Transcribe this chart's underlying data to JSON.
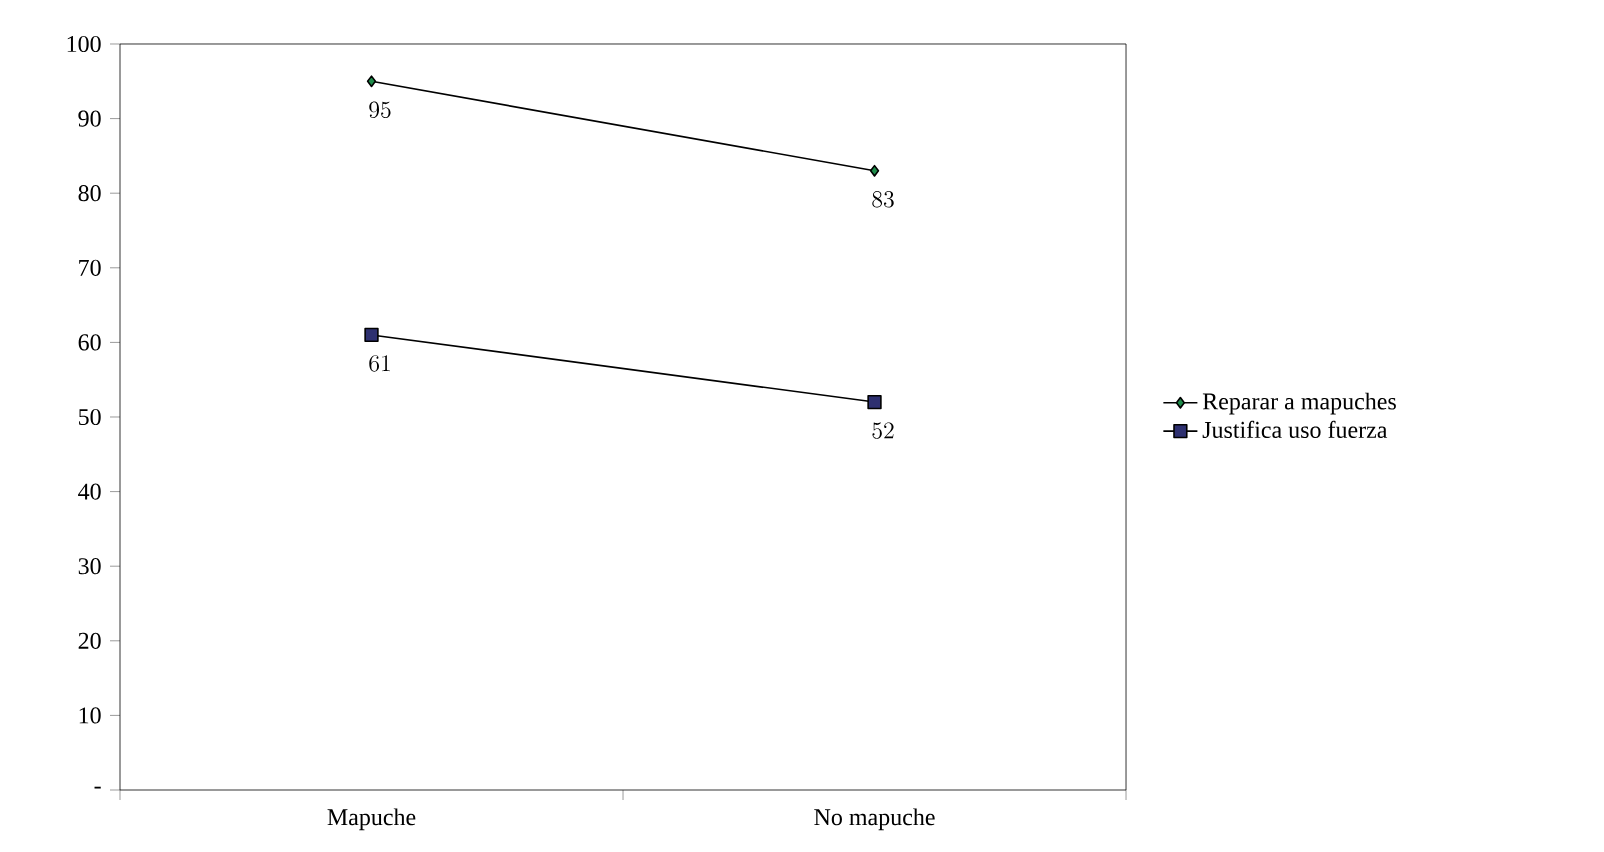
{
  "chart_data": {
    "type": "line",
    "categories": [
      "Mapuche",
      "No mapuche"
    ],
    "series": [
      {
        "name": "Reparar a mapuches",
        "color": "#1e8b4a",
        "marker": "diamond",
        "values": [
          95,
          83
        ]
      },
      {
        "name": "Justifica uso fuerza",
        "color": "#2e3070",
        "marker": "square",
        "values": [
          61,
          52
        ]
      }
    ],
    "ylim": [
      0,
      100
    ],
    "yticks": [
      {
        "value": 0,
        "label": "-"
      },
      10,
      20,
      30,
      40,
      50,
      60,
      70,
      80,
      90,
      100
    ],
    "data_labels": true,
    "legend": "right",
    "grid": false,
    "line_style": "solid"
  }
}
